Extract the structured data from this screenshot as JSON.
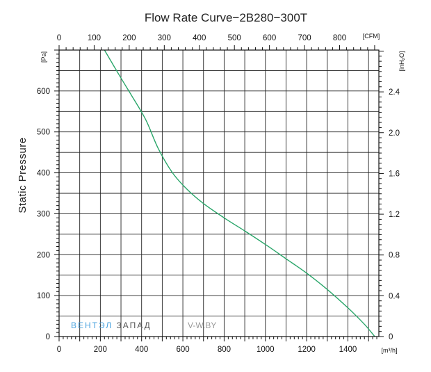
{
  "chart_data": {
    "type": "line",
    "title": "Flow Rate Curve−2B280−300T",
    "ylabel": "Static Pressure",
    "x_bottom": {
      "unit": "[m³/h]",
      "range": [
        0,
        1550
      ],
      "ticks": [
        0,
        200,
        400,
        600,
        800,
        1000,
        1200,
        1400
      ],
      "labels": [
        "0",
        "200",
        "400",
        "600",
        "800",
        "1000",
        "1200",
        "1400"
      ]
    },
    "x_top": {
      "unit": "[CFM]",
      "range": [
        0,
        912
      ],
      "ticks": [
        0,
        100,
        200,
        300,
        400,
        500,
        600,
        700,
        800
      ],
      "labels": [
        "0",
        "100",
        "200",
        "300",
        "400",
        "500",
        "600",
        "700",
        "800"
      ]
    },
    "y_left": {
      "unit": "[Pa]",
      "range": [
        0,
        700
      ],
      "ticks": [
        0,
        100,
        200,
        300,
        400,
        500,
        600
      ],
      "labels": [
        "0",
        "100",
        "200",
        "300",
        "400",
        "500",
        "600"
      ]
    },
    "y_right": {
      "unit": "[inH₂O]",
      "range": [
        0,
        2.81
      ],
      "ticks": [
        0,
        0.4,
        0.8,
        1.2,
        1.6,
        2.0,
        2.4
      ],
      "labels": [
        "0",
        "0.4",
        "0.8",
        "1.2",
        "1.6",
        "2.0",
        "2.4"
      ]
    },
    "grid": true,
    "series": [
      {
        "color": "#2aa66a",
        "x": [
          220,
          290,
          350,
          420,
          480,
          550,
          620,
          700,
          800,
          900,
          1000,
          1100,
          1200,
          1300,
          1400,
          1480,
          1530
        ],
        "y": [
          700,
          640,
          590,
          530,
          460,
          400,
          360,
          325,
          290,
          258,
          225,
          190,
          155,
          115,
          70,
          30,
          0
        ]
      }
    ]
  },
  "watermark": {
    "part1": "ВЕНТЭЛ",
    "part2": "ЗАПАД",
    "site": "V-W.BY",
    "color1": "#4aa3df",
    "color2": "#555555",
    "color3": "#999999"
  }
}
